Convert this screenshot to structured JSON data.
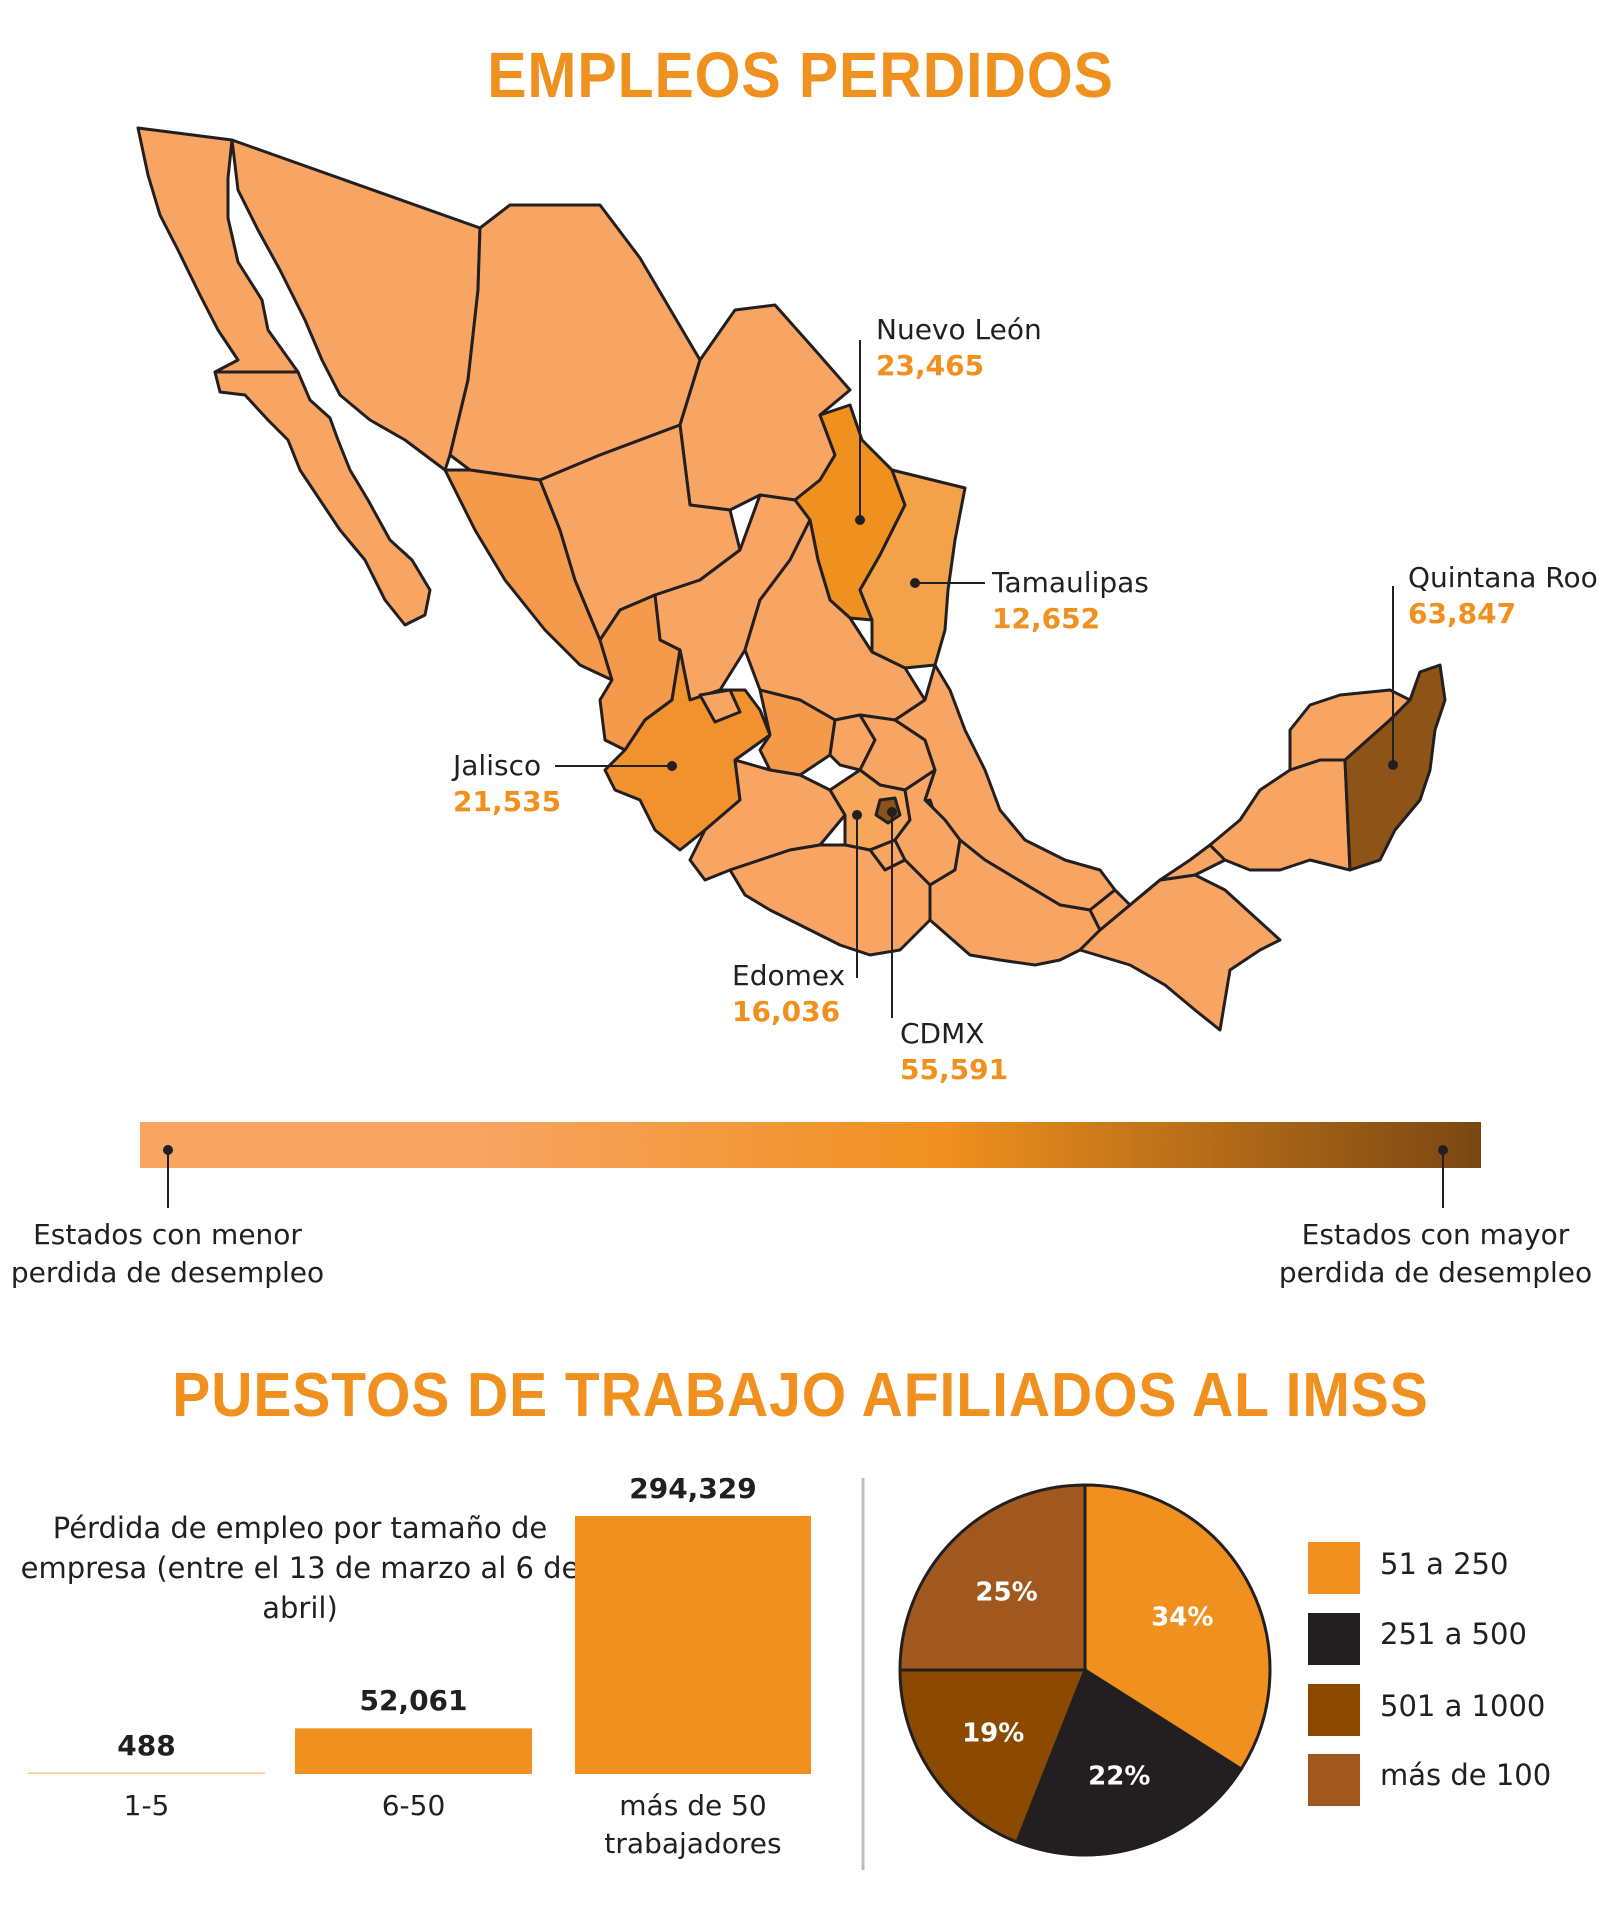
{
  "map": {
    "title": "EMPLEOS PERDIDOS",
    "callouts": [
      {
        "name": "Nuevo León",
        "value": "23,465"
      },
      {
        "name": "Tamaulipas",
        "value": "12,652"
      },
      {
        "name": "Quintana Roo",
        "value": "63,847"
      },
      {
        "name": "Jalisco",
        "value": "21,535"
      },
      {
        "name": "Edomex",
        "value": "16,036"
      },
      {
        "name": "CDMX",
        "value": "55,591"
      }
    ],
    "scale": {
      "low_label": "Estados con menor perdida de desempleo",
      "high_label": "Estados con mayor perdida de desempleo",
      "low_color": "#f8a463",
      "mid_color": "#f0901e",
      "high_color": "#7a4712"
    },
    "colors": {
      "base": "#f8a463",
      "mid": "#f59a4a",
      "nuevo_leon": "#f0901e",
      "tamaulipas": "#f4a24a",
      "jalisco": "#f2922e",
      "edomex": "#f6a75c",
      "cdmx": "#8b5220",
      "quintana_roo": "#8e5316",
      "outline": "#231f20"
    }
  },
  "imss": {
    "title": "PUESTOS DE TRABAJO AFILIADOS AL IMSS",
    "caption": "Pérdida de empleo por tamaño de empresa (entre el 13 de marzo al 6 de abril)",
    "chart_data": [
      {
        "type": "bar",
        "categories": [
          "1-5",
          "6-50",
          "más de 50 trabajadores"
        ],
        "values": [
          488,
          52061,
          294329
        ],
        "value_labels": [
          "488",
          "52,061",
          "294,329"
        ],
        "ylim": [
          0,
          294329
        ],
        "color": "#f0901e"
      },
      {
        "type": "pie",
        "slices": [
          {
            "name": "51 a 250",
            "value": 34,
            "label": "34%",
            "color": "#f0901e"
          },
          {
            "name": "251 a 500",
            "value": 22,
            "label": "22%",
            "color": "#231f20"
          },
          {
            "name": "501 a 1000",
            "value": 19,
            "label": "19%",
            "color": "#8b4a00"
          },
          {
            "name": "más de 100",
            "value": 25,
            "label": "25%",
            "color": "#a0581e"
          }
        ],
        "legend": "right"
      }
    ]
  }
}
